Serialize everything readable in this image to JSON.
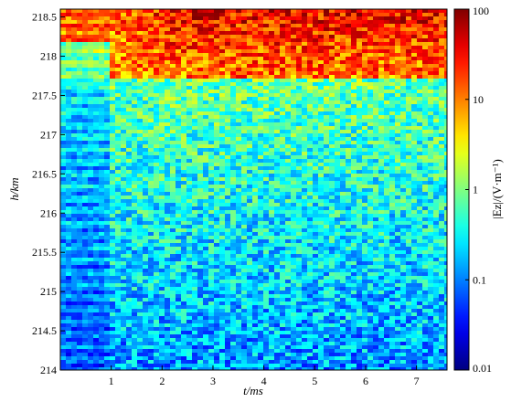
{
  "chart_data": {
    "type": "heatmap",
    "title": "",
    "xlabel": "t/ms",
    "ylabel": "h/km",
    "xlim": [
      0,
      7.6
    ],
    "ylim": [
      214,
      218.6
    ],
    "x_ticks": [
      1,
      2,
      3,
      4,
      5,
      6,
      7
    ],
    "y_ticks": [
      214,
      214.5,
      215,
      215.5,
      216,
      216.5,
      217,
      217.5,
      218,
      218.5
    ],
    "colorbar": {
      "label": "|Ez|/(V·m⁻¹)",
      "scale": "log",
      "range": [
        0.01,
        100
      ],
      "ticks": [
        0.01,
        0.1,
        1,
        10,
        100
      ],
      "tick_labels": [
        "0.01",
        "0.1",
        "1",
        "10",
        "100"
      ],
      "colormap": "jet",
      "colors": [
        "#00007f",
        "#0000ff",
        "#007fff",
        "#00ffff",
        "#7fff7f",
        "#ffff00",
        "#ff7f00",
        "#ff0000",
        "#7f0000"
      ]
    },
    "regions": [
      {
        "description": "strong field near top",
        "t_range": [
          1,
          7.6
        ],
        "h_range": [
          217.7,
          218.5
        ],
        "value_approx": 30
      },
      {
        "description": "early-time column",
        "t_range": [
          0,
          1
        ],
        "h_range": [
          214,
          218.5
        ],
        "value_approx": 0.1
      },
      {
        "description": "background",
        "t_range": [
          1,
          7.6
        ],
        "h_range": [
          214,
          217.5
        ],
        "value_approx": 0.5
      }
    ]
  }
}
